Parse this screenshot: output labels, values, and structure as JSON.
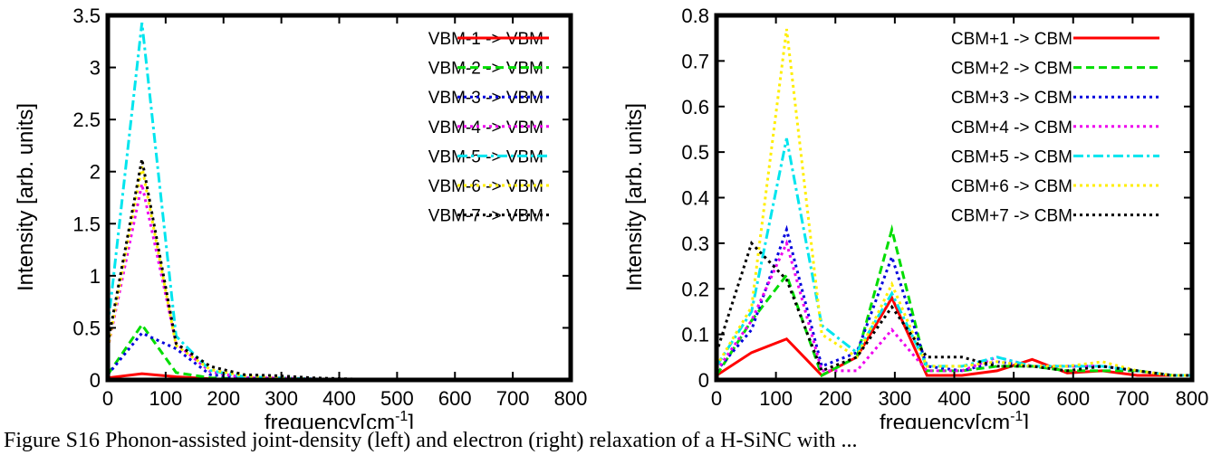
{
  "caption": "Figure S16 Phonon-assisted joint-density (left) and electron (right) relaxation of a H-SiNC with ...",
  "chart_data": [
    {
      "type": "line",
      "xlabel": "frequency[cm",
      "xlabel_sup": "-1",
      "xlabel_suffix": "]",
      "ylabel": "Intensity [arb. units]",
      "xlim": [
        0,
        800
      ],
      "ylim": [
        0,
        3.5
      ],
      "xticks": [
        0,
        100,
        200,
        300,
        400,
        500,
        600,
        700,
        800
      ],
      "yticks": [
        0,
        0.5,
        1,
        1.5,
        2,
        2.5,
        3,
        3.5
      ],
      "ytick_labels": [
        "0",
        "0.5",
        "1",
        "1.5",
        "2",
        "2.5",
        "3",
        "3.5"
      ],
      "grid": false,
      "legend_position": "top-right",
      "series": [
        {
          "name": "VBM-1 -> VBM",
          "color": "#ff0000",
          "dash": "solid",
          "x": [
            0,
            59,
            118,
            177,
            236,
            295,
            354,
            413,
            472,
            531,
            590,
            649,
            708,
            767
          ],
          "y": [
            0.02,
            0.06,
            0.03,
            0.01,
            0,
            0,
            0,
            0,
            0,
            0,
            0,
            0,
            0,
            0
          ]
        },
        {
          "name": "VBM-2 -> VBM",
          "color": "#00dd00",
          "dash": "dashed",
          "x": [
            0,
            59,
            118,
            177,
            236,
            295,
            354,
            413,
            472,
            531,
            590,
            649,
            708,
            767
          ],
          "y": [
            0.05,
            0.53,
            0.07,
            0.02,
            0.01,
            0,
            0,
            0,
            0,
            0,
            0,
            0,
            0,
            0
          ]
        },
        {
          "name": "VBM-3 -> VBM",
          "color": "#0000dd",
          "dash": "dotted",
          "x": [
            0,
            59,
            118,
            177,
            236,
            295,
            354,
            413,
            472,
            531,
            590,
            649,
            708,
            767
          ],
          "y": [
            0.05,
            0.45,
            0.3,
            0.05,
            0.02,
            0.01,
            0,
            0,
            0,
            0,
            0,
            0,
            0,
            0
          ]
        },
        {
          "name": "VBM-4 -> VBM",
          "color": "#ee00ee",
          "dash": "dotted",
          "x": [
            0,
            59,
            118,
            177,
            236,
            295,
            354,
            413,
            472,
            531,
            590,
            649,
            708,
            767
          ],
          "y": [
            0.3,
            1.88,
            0.35,
            0.08,
            0.02,
            0.02,
            0.01,
            0,
            0,
            0,
            0,
            0,
            0,
            0
          ]
        },
        {
          "name": "VBM-5 -> VBM",
          "color": "#00e5ee",
          "dash": "dashdot",
          "x": [
            0,
            59,
            118,
            177,
            236,
            295,
            354,
            413,
            472,
            531,
            590,
            649,
            708,
            767
          ],
          "y": [
            0.5,
            3.43,
            0.42,
            0.09,
            0.03,
            0.02,
            0.01,
            0,
            0,
            0,
            0,
            0,
            0,
            0
          ]
        },
        {
          "name": "VBM-6 -> VBM",
          "color": "#ffee00",
          "dash": "dotted",
          "x": [
            0,
            59,
            118,
            177,
            236,
            295,
            354,
            413,
            472,
            531,
            590,
            649,
            708,
            767
          ],
          "y": [
            0.3,
            2.05,
            0.33,
            0.1,
            0.04,
            0.02,
            0.01,
            0,
            0,
            0,
            0,
            0,
            0,
            0
          ]
        },
        {
          "name": "VBM-7 -> VBM",
          "color": "#000000",
          "dash": "dotted",
          "x": [
            0,
            59,
            118,
            177,
            236,
            295,
            354,
            413,
            472,
            531,
            590,
            649,
            708,
            767
          ],
          "y": [
            0.35,
            2.12,
            0.35,
            0.13,
            0.05,
            0.04,
            0.02,
            0.01,
            0,
            0,
            0,
            0,
            0,
            0
          ]
        }
      ]
    },
    {
      "type": "line",
      "xlabel": "frequency[cm",
      "xlabel_sup": "-1",
      "xlabel_suffix": "]",
      "ylabel": "Intensity [arb. units]",
      "xlim": [
        0,
        800
      ],
      "ylim": [
        0,
        0.8
      ],
      "xticks": [
        0,
        100,
        200,
        300,
        400,
        500,
        600,
        700,
        800
      ],
      "yticks": [
        0,
        0.1,
        0.2,
        0.3,
        0.4,
        0.5,
        0.6,
        0.7,
        0.8
      ],
      "ytick_labels": [
        "0",
        "0.1",
        "0.2",
        "0.3",
        "0.4",
        "0.5",
        "0.6",
        "0.7",
        "0.8"
      ],
      "grid": false,
      "legend_position": "top-right",
      "series": [
        {
          "name": "CBM+1 -> CBM",
          "color": "#ff0000",
          "dash": "solid",
          "x": [
            0,
            59,
            118,
            177,
            236,
            295,
            354,
            413,
            472,
            531,
            590,
            649,
            708,
            767,
            800
          ],
          "y": [
            0.01,
            0.06,
            0.09,
            0.01,
            0.05,
            0.18,
            0.01,
            0.01,
            0.02,
            0.045,
            0.015,
            0.02,
            0.01,
            0.01,
            0.01
          ]
        },
        {
          "name": "CBM+2 -> CBM",
          "color": "#00dd00",
          "dash": "dashed",
          "x": [
            0,
            59,
            118,
            177,
            236,
            295,
            354,
            413,
            472,
            531,
            590,
            649,
            708,
            767,
            800
          ],
          "y": [
            0.01,
            0.13,
            0.23,
            0.01,
            0.05,
            0.33,
            0.02,
            0.02,
            0.03,
            0.03,
            0.02,
            0.02,
            0.02,
            0.01,
            0.01
          ]
        },
        {
          "name": "CBM+3 -> CBM",
          "color": "#0000dd",
          "dash": "dotted",
          "x": [
            0,
            59,
            118,
            177,
            236,
            295,
            354,
            413,
            472,
            531,
            590,
            649,
            708,
            767,
            800
          ],
          "y": [
            0.02,
            0.11,
            0.33,
            0.03,
            0.06,
            0.27,
            0.03,
            0.02,
            0.04,
            0.03,
            0.03,
            0.03,
            0.02,
            0.01,
            0.01
          ]
        },
        {
          "name": "CBM+4 -> CBM",
          "color": "#ee00ee",
          "dash": "dotted",
          "x": [
            0,
            59,
            118,
            177,
            236,
            295,
            354,
            413,
            472,
            531,
            590,
            649,
            708,
            767,
            800
          ],
          "y": [
            0.02,
            0.13,
            0.3,
            0.02,
            0.02,
            0.11,
            0.02,
            0.02,
            0.05,
            0.03,
            0.03,
            0.03,
            0.02,
            0.01,
            0.01
          ]
        },
        {
          "name": "CBM+5 -> CBM",
          "color": "#00e5ee",
          "dash": "dashdot",
          "x": [
            0,
            59,
            118,
            177,
            236,
            295,
            354,
            413,
            472,
            531,
            590,
            649,
            708,
            767,
            800
          ],
          "y": [
            0.03,
            0.15,
            0.53,
            0.12,
            0.06,
            0.19,
            0.03,
            0.03,
            0.05,
            0.03,
            0.03,
            0.03,
            0.02,
            0.01,
            0.01
          ]
        },
        {
          "name": "CBM+6 -> CBM",
          "color": "#ffee00",
          "dash": "dotted",
          "x": [
            0,
            59,
            118,
            177,
            236,
            295,
            354,
            413,
            472,
            531,
            590,
            649,
            708,
            767,
            800
          ],
          "y": [
            0.03,
            0.16,
            0.77,
            0.1,
            0.05,
            0.21,
            0.03,
            0.03,
            0.04,
            0.03,
            0.03,
            0.04,
            0.02,
            0.01,
            0.01
          ]
        },
        {
          "name": "CBM+7 -> CBM",
          "color": "#000000",
          "dash": "dotted",
          "x": [
            0,
            59,
            118,
            177,
            236,
            295,
            354,
            413,
            472,
            531,
            590,
            649,
            708,
            767,
            800
          ],
          "y": [
            0.06,
            0.3,
            0.22,
            0.02,
            0.05,
            0.16,
            0.05,
            0.05,
            0.03,
            0.03,
            0.02,
            0.03,
            0.02,
            0.01,
            0.01
          ]
        }
      ]
    }
  ]
}
